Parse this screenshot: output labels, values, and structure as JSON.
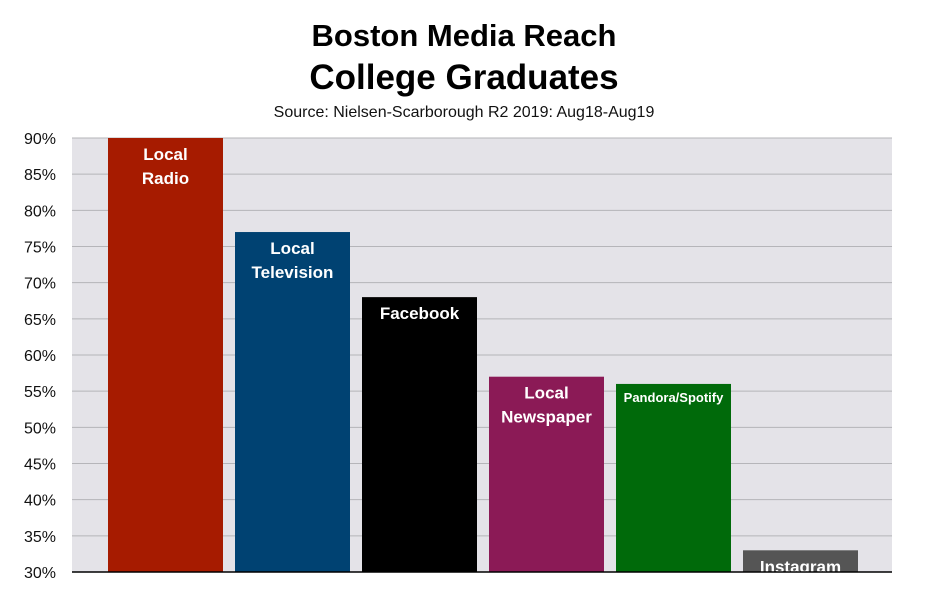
{
  "chart_data": {
    "type": "bar",
    "title": "Boston Media Reach",
    "subtitle": "College Graduates",
    "source": "Source: Nielsen-Scarborough R2 2019: Aug18-Aug19",
    "ylim": [
      30,
      90
    ],
    "yticks": [
      "90%",
      "85%",
      "80%",
      "75%",
      "70%",
      "65%",
      "60%",
      "55%",
      "50%",
      "45%",
      "40%",
      "35%",
      "30%"
    ],
    "grid": true,
    "bars": [
      {
        "label_lines": [
          "Local",
          "Radio"
        ],
        "value": 90,
        "color": "#a61b00"
      },
      {
        "label_lines": [
          "Local",
          "Television"
        ],
        "value": 77,
        "color": "#004272"
      },
      {
        "label_lines": [
          "Facebook"
        ],
        "value": 68,
        "color": "#000000"
      },
      {
        "label_lines": [
          "Local",
          "Newspaper"
        ],
        "value": 57,
        "color": "#8b1a56"
      },
      {
        "label_lines": [
          "Pandora/Spotify"
        ],
        "value": 56,
        "color": "#006a0a"
      },
      {
        "label_lines": [
          "Instagram"
        ],
        "value": 33,
        "color": "#555555"
      }
    ]
  }
}
